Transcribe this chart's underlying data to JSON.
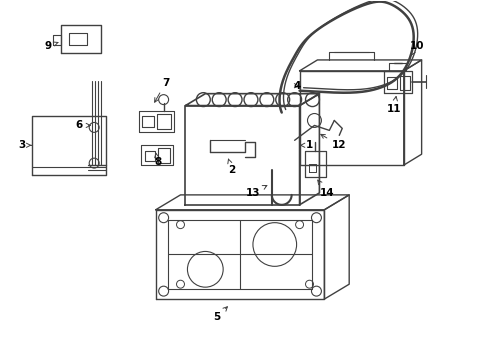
{
  "background_color": "#ffffff",
  "line_color": "#404040",
  "text_color": "#000000",
  "label_fontsize": 7.5,
  "arrow_lw": 0.7
}
